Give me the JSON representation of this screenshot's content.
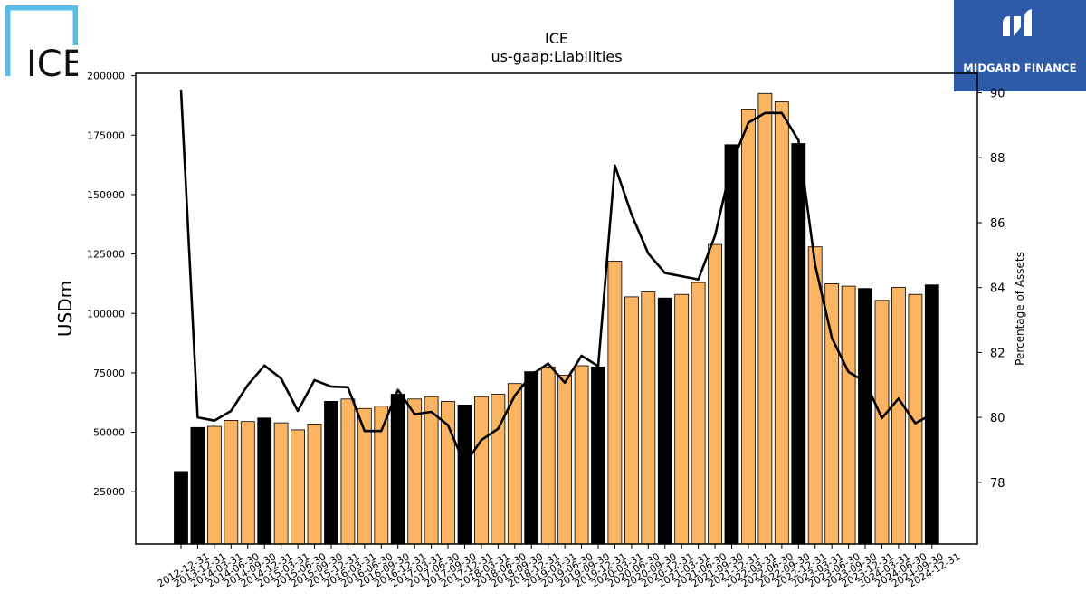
{
  "logos": {
    "left": {
      "text": "ICE",
      "color": "#5bbde6"
    },
    "right": {
      "text": "MIDGARD FINANCE",
      "color": "#2f5aa8"
    }
  },
  "chart_data": {
    "type": "bar",
    "title": "ICE",
    "subtitle": "us-gaap:Liabilities",
    "ylabel": "USDm",
    "y2label": "Percentage of Assets",
    "ylim": [
      3000,
      201000
    ],
    "y2lim": [
      76.1,
      90.6
    ],
    "yticks": [
      25000,
      50000,
      75000,
      100000,
      125000,
      150000,
      175000,
      200000
    ],
    "y2ticks": [
      78,
      80,
      82,
      84,
      86,
      88,
      90
    ],
    "colors": {
      "annual": "#000000",
      "quarterly": "#fbb461",
      "line": "#000000"
    },
    "categories": [
      "2012-12-31",
      "2013-12-31",
      "2014-03-31",
      "2014-06-30",
      "2014-09-30",
      "2014-12-31",
      "2015-03-31",
      "2015-06-30",
      "2015-09-30",
      "2015-12-31",
      "2016-03-31",
      "2016-06-30",
      "2016-09-30",
      "2016-12-31",
      "2017-03-31",
      "2017-06-30",
      "2017-09-30",
      "2017-12-31",
      "2018-03-31",
      "2018-06-30",
      "2018-09-30",
      "2018-12-31",
      "2019-03-31",
      "2019-06-30",
      "2019-09-30",
      "2019-12-31",
      "2020-03-31",
      "2020-06-30",
      "2020-09-30",
      "2020-12-31",
      "2021-03-31",
      "2021-06-30",
      "2021-09-30",
      "2021-12-31",
      "2022-03-31",
      "2022-06-30",
      "2022-09-30",
      "2022-12-31",
      "2023-03-31",
      "2023-06-30",
      "2023-09-30",
      "2023-12-31",
      "2024-03-31",
      "2024-06-30",
      "2024-09-30",
      "2024-12-31"
    ],
    "series": [
      {
        "type": "bar",
        "values": [
          33500,
          52000,
          52500,
          55000,
          54500,
          56000,
          54000,
          51000,
          53500,
          63000,
          64000,
          60000,
          61000,
          66000,
          64000,
          65000,
          63000,
          61500,
          65000,
          66000,
          70500,
          75500,
          77500,
          74000,
          78000,
          77500,
          122000,
          107000,
          109000,
          106500,
          108000,
          113000,
          129000,
          171000,
          186000,
          192500,
          189000,
          171500,
          128000,
          112500,
          111500,
          110500,
          105500,
          111000,
          108000,
          112000
        ],
        "annual": [
          true,
          true,
          false,
          false,
          false,
          true,
          false,
          false,
          false,
          true,
          false,
          false,
          false,
          true,
          false,
          false,
          false,
          true,
          false,
          false,
          false,
          true,
          false,
          false,
          false,
          true,
          false,
          false,
          false,
          true,
          false,
          false,
          false,
          true,
          false,
          false,
          false,
          true,
          false,
          false,
          false,
          true,
          false,
          false,
          false,
          true
        ]
      },
      {
        "type": "line",
        "axis": "right",
        "values": [
          90.1,
          80.0,
          79.9,
          80.2,
          81.0,
          81.6,
          81.2,
          80.2,
          81.15,
          80.95,
          80.93,
          79.58,
          79.58,
          80.85,
          80.1,
          80.17,
          79.76,
          78.55,
          79.3,
          79.65,
          80.67,
          81.31,
          81.66,
          81.07,
          81.9,
          81.58,
          87.76,
          86.25,
          85.05,
          84.45,
          84.35,
          84.25,
          85.6,
          87.82,
          89.08,
          89.38,
          89.38,
          88.54,
          84.7,
          82.45,
          81.4,
          81.1,
          79.98,
          80.58,
          79.82,
          80.1
        ]
      }
    ]
  }
}
